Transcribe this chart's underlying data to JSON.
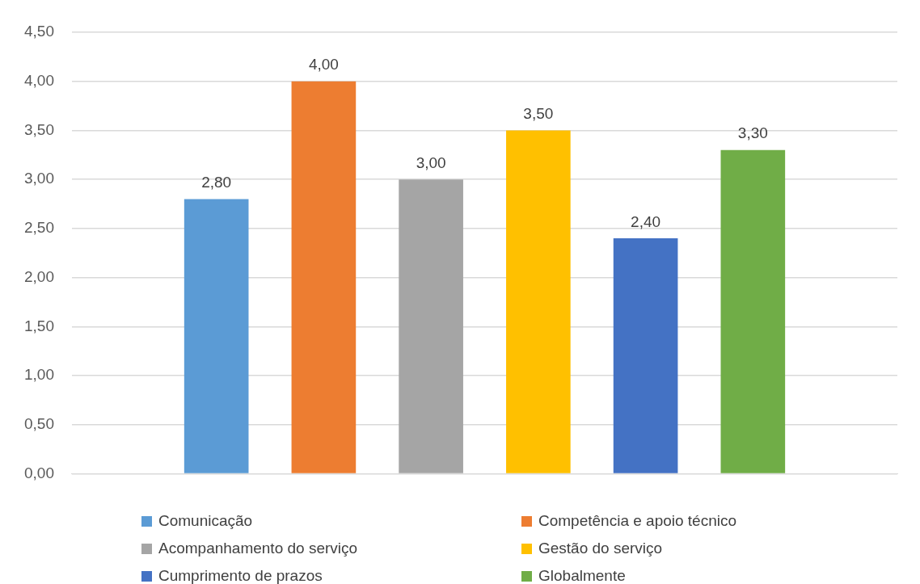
{
  "chart_data": {
    "type": "bar",
    "categories": [
      null
    ],
    "series": [
      {
        "name": "Comunicação",
        "color": "#5b9bd5",
        "values": [
          2.8
        ],
        "value_labels": [
          "2,80"
        ]
      },
      {
        "name": "Competência e apoio técnico",
        "color": "#ed7d31",
        "values": [
          4.0
        ],
        "value_labels": [
          "4,00"
        ]
      },
      {
        "name": "Acompanhamento do serviço",
        "color": "#a5a5a5",
        "values": [
          3.0
        ],
        "value_labels": [
          "3,00"
        ]
      },
      {
        "name": "Gestão do serviço",
        "color": "#ffc000",
        "values": [
          3.5
        ],
        "value_labels": [
          "3,50"
        ]
      },
      {
        "name": "Cumprimento de prazos",
        "color": "#4472c4",
        "values": [
          2.4
        ],
        "value_labels": [
          "2,40"
        ]
      },
      {
        "name": "Globalmente",
        "color": "#70ad47",
        "values": [
          3.3
        ],
        "value_labels": [
          "3,30"
        ]
      }
    ],
    "ylim": [
      0,
      4.5
    ],
    "yticks": [
      {
        "value": 0,
        "label": "0,00"
      },
      {
        "value": 0.5,
        "label": "0,50"
      },
      {
        "value": 1,
        "label": "1,00"
      },
      {
        "value": 1.5,
        "label": "1,50"
      },
      {
        "value": 2,
        "label": "2,00"
      },
      {
        "value": 2.5,
        "label": "2,50"
      },
      {
        "value": 3,
        "label": "3,00"
      },
      {
        "value": 3.5,
        "label": "3,50"
      },
      {
        "value": 4,
        "label": "4,00"
      },
      {
        "value": 4.5,
        "label": "4,50"
      }
    ],
    "grid": "y",
    "legend": "bottom"
  }
}
